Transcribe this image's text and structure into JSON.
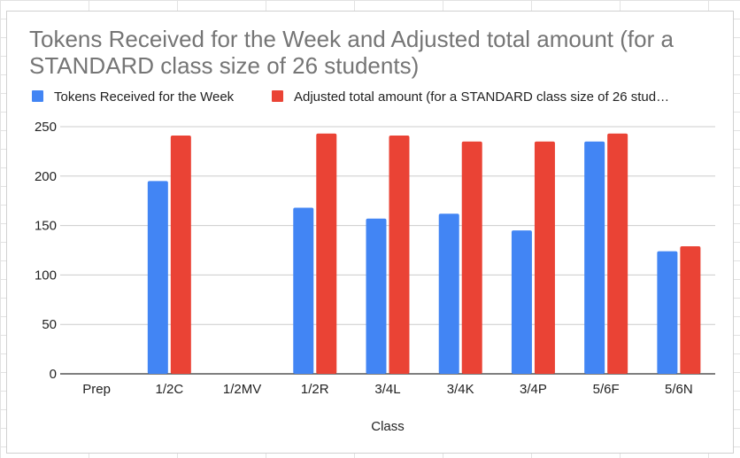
{
  "chart_data": {
    "type": "bar",
    "title_lines": [
      "Tokens Received for the Week and Adjusted total amount (for a",
      "STANDARD class size of 26 students)"
    ],
    "xlabel": "Class",
    "ylabel": "",
    "ylim": [
      0,
      250
    ],
    "yticks": [
      0,
      50,
      100,
      150,
      200,
      250
    ],
    "grid": true,
    "legend_position": "top",
    "categories": [
      "Prep",
      "1/2C",
      "1/2MV",
      "1/2R",
      "3/4L",
      "3/4K",
      "3/4P",
      "5/6F",
      "5/6N"
    ],
    "series": [
      {
        "name": "Tokens Received for the Week",
        "legend_label": "Tokens Received for the Week",
        "color": "#4285f4",
        "values": [
          null,
          195,
          null,
          168,
          157,
          162,
          145,
          235,
          124
        ]
      },
      {
        "name": "Adjusted total amount (for a STANDARD class size of 26 students)",
        "legend_label": "Adjusted total amount (for a STANDARD class size of 26 stud…",
        "color": "#ea4335",
        "values": [
          null,
          241,
          null,
          243,
          241,
          235,
          235,
          243,
          129
        ]
      }
    ]
  }
}
